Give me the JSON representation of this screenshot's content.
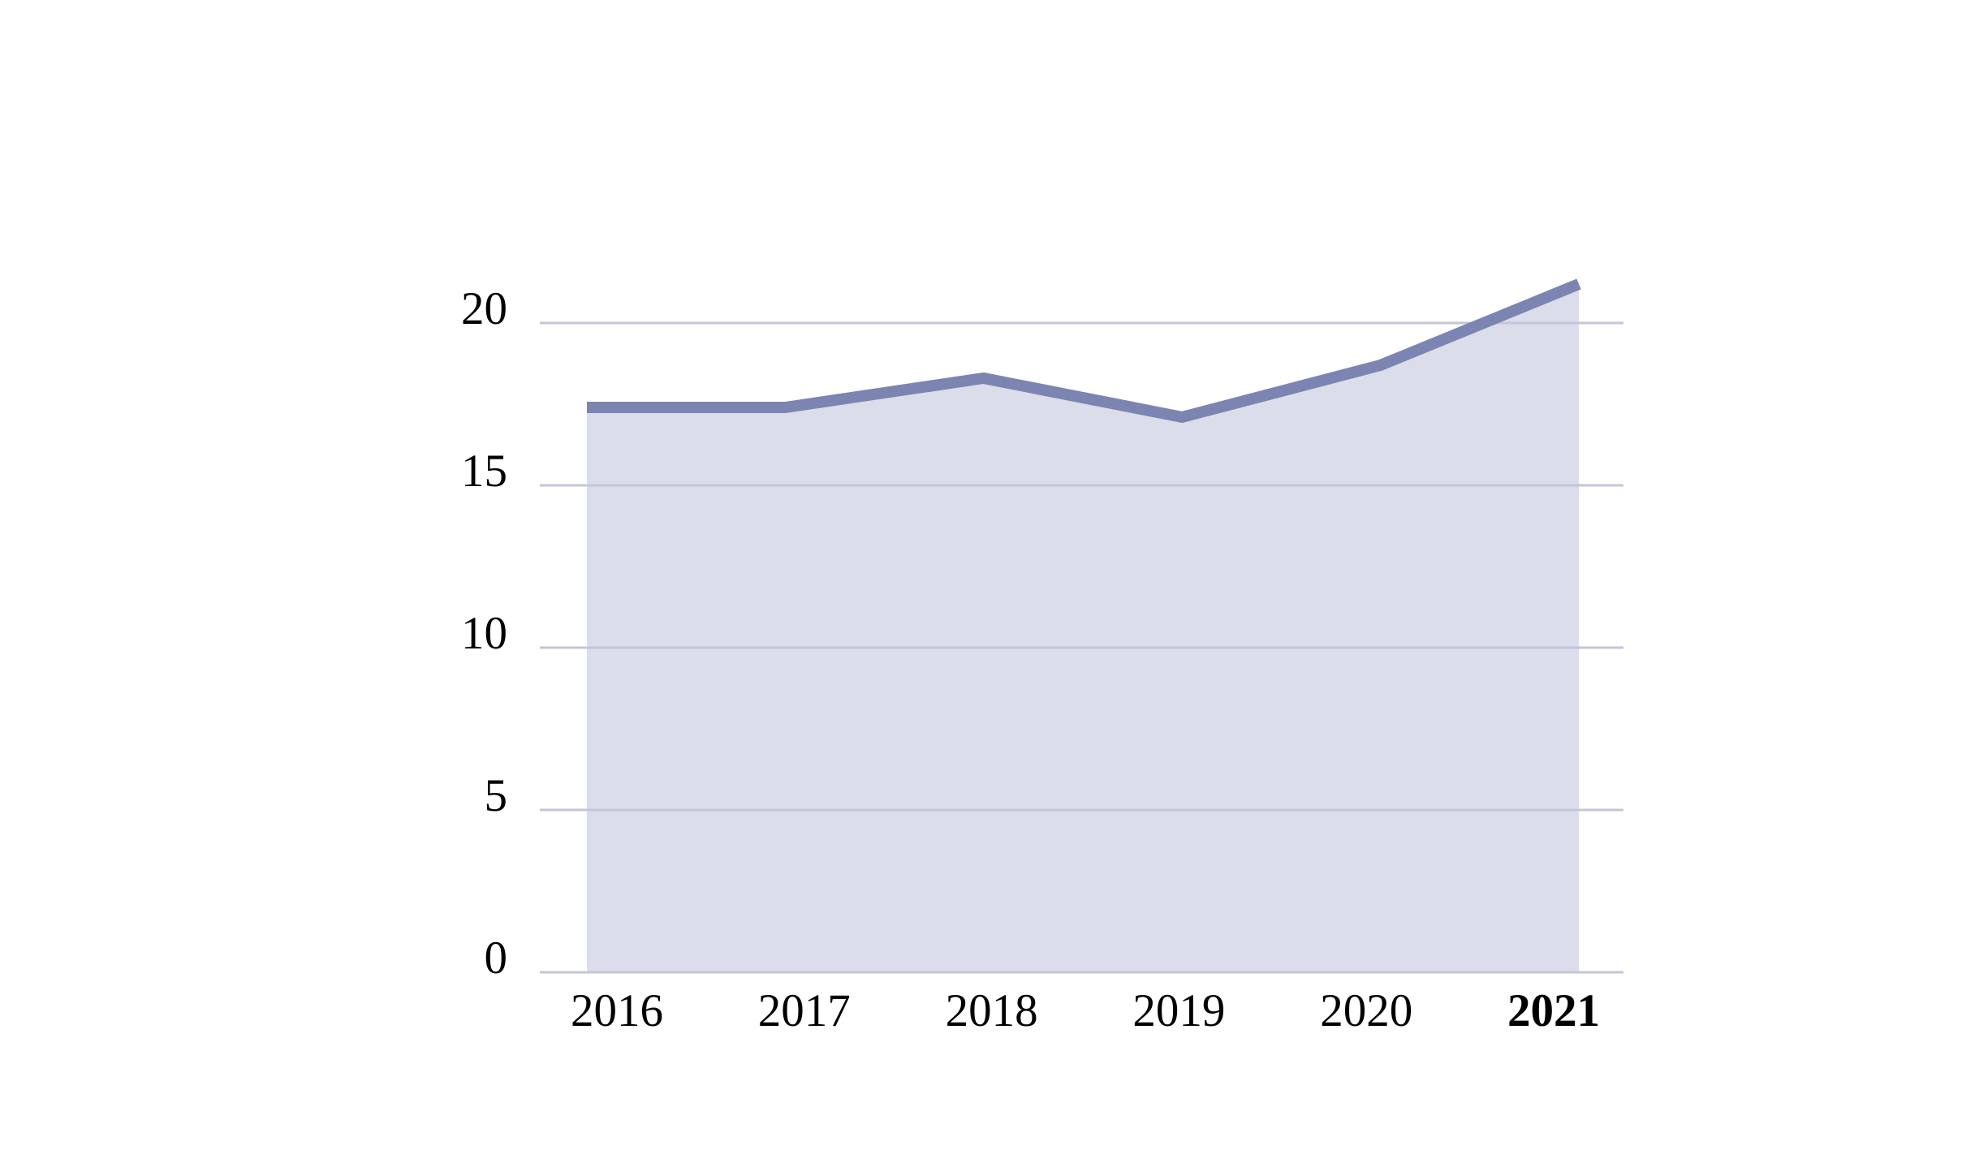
{
  "chart_data": {
    "type": "area",
    "categories": [
      "2016",
      "2017",
      "2018",
      "2019",
      "2020",
      "2021"
    ],
    "values": [
      17.4,
      17.4,
      18.3,
      17.1,
      18.7,
      21.2
    ],
    "emphasized_category": "2021",
    "y_ticks": [
      0,
      5,
      10,
      15,
      20
    ],
    "y_tick_labels": [
      "0",
      "5",
      "10",
      "15",
      "20"
    ],
    "title": "",
    "xlabel": "",
    "ylabel": "",
    "ylim": [
      0,
      21.2
    ],
    "grid": true,
    "legend": false,
    "colors": {
      "line": "#7c84b1",
      "area_fill": "#dbddea",
      "gridline": "#c3c6da",
      "tick_text": "#000000",
      "background": "#ffffff"
    }
  }
}
